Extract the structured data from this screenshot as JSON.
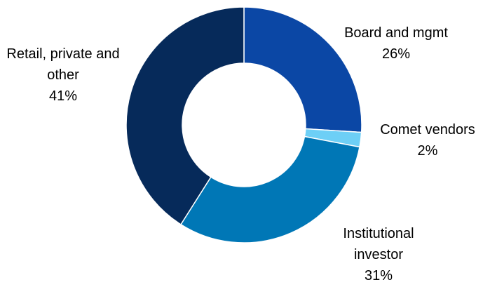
{
  "chart_data": {
    "type": "donut",
    "categories": [
      "Board and mgmt",
      "Comet vendors",
      "Institutional investor",
      "Retail, private and other"
    ],
    "values": [
      26,
      2,
      31,
      41
    ],
    "value_labels": [
      "26%",
      "2%",
      "31%",
      "41%"
    ],
    "colors": [
      "#0b47a5",
      "#6dcff6",
      "#0077b6",
      "#062a5a"
    ]
  }
}
